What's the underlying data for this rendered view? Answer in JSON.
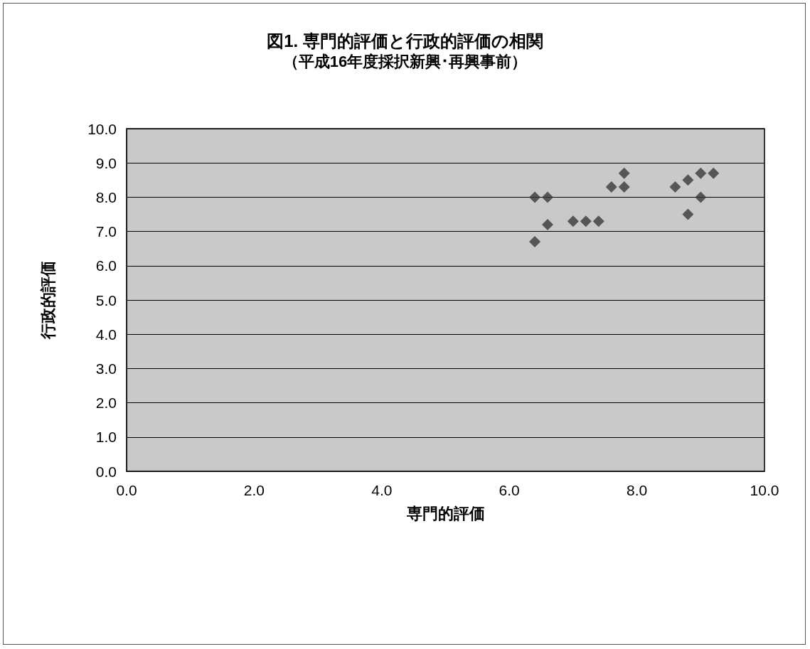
{
  "chart_data": {
    "type": "scatter",
    "title": "図1. 専門的評価と行政的評価の相関",
    "subtitle": "（平成16年度採択新興･再興事前）",
    "xlabel": "専門的評価",
    "ylabel": "行政的評価",
    "x": [
      6.4,
      6.6,
      6.6,
      6.4,
      7.0,
      7.2,
      7.4,
      7.6,
      7.8,
      7.8,
      8.6,
      8.8,
      8.8,
      9.0,
      9.0,
      9.2
    ],
    "series": [
      {
        "color": "#3a3a3a",
        "values": [
          8.0,
          8.0,
          7.2,
          6.7,
          7.3,
          7.3,
          7.3,
          8.3,
          8.7,
          8.3,
          8.3,
          8.5,
          7.5,
          8.7,
          8.0,
          8.7
        ]
      }
    ],
    "xlim": [
      0,
      10
    ],
    "xticks": [
      {
        "value": 0,
        "label": "0.0"
      },
      {
        "value": 2,
        "label": "2.0"
      },
      {
        "value": 4,
        "label": "4.0"
      },
      {
        "value": 6,
        "label": "6.0"
      },
      {
        "value": 8,
        "label": "8.0"
      },
      {
        "value": 10,
        "label": "10.0"
      }
    ],
    "ylim": [
      0,
      10
    ],
    "yticks": [
      {
        "value": 0,
        "label": "0.0"
      },
      {
        "value": 1,
        "label": "1.0"
      },
      {
        "value": 2,
        "label": "2.0"
      },
      {
        "value": 3,
        "label": "3.0"
      },
      {
        "value": 4,
        "label": "4.0"
      },
      {
        "value": 5,
        "label": "5.0"
      },
      {
        "value": 6,
        "label": "6.0"
      },
      {
        "value": 7,
        "label": "7.0"
      },
      {
        "value": 8,
        "label": "8.0"
      },
      {
        "value": 9,
        "label": "9.0"
      },
      {
        "value": 10,
        "label": "10.0"
      }
    ],
    "grid": "y",
    "marker": "diamond"
  }
}
